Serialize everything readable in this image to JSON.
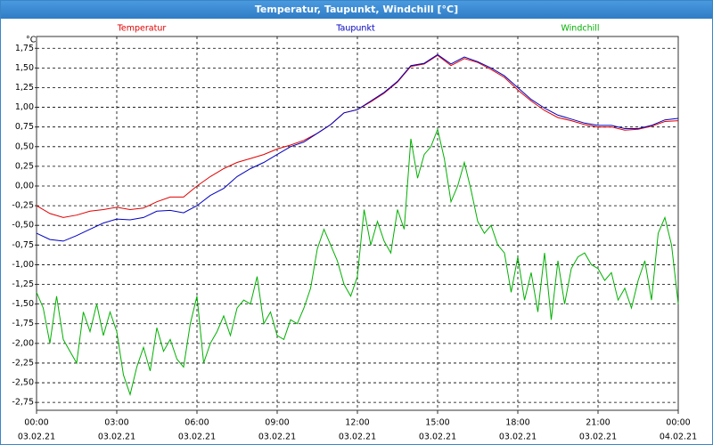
{
  "chart_data": {
    "type": "line",
    "title": "Temperatur, Taupunkt, Windchill [°C]",
    "y_unit": "°C",
    "xlim": [
      0,
      24
    ],
    "xticks": [
      {
        "value": 0,
        "label": "00:00"
      },
      {
        "value": 3,
        "label": "03:00"
      },
      {
        "value": 6,
        "label": "06:00"
      },
      {
        "value": 9,
        "label": "09:00"
      },
      {
        "value": 12,
        "label": "12:00"
      },
      {
        "value": 15,
        "label": "15:00"
      },
      {
        "value": 18,
        "label": "18:00"
      },
      {
        "value": 21,
        "label": "21:00"
      },
      {
        "value": 24,
        "label": "00:00"
      }
    ],
    "xtick_dates": [
      "03.02.21",
      "03.02.21",
      "03.02.21",
      "03.02.21",
      "03.02.21",
      "03.02.21",
      "03.02.21",
      "03.02.21",
      "04.02.21"
    ],
    "ylim": [
      -2.85,
      1.9
    ],
    "yticks": [
      {
        "value": 1.75,
        "label": "1,75"
      },
      {
        "value": 1.5,
        "label": "1,50"
      },
      {
        "value": 1.25,
        "label": "1,25"
      },
      {
        "value": 1,
        "label": "1,00"
      },
      {
        "value": 0.75,
        "label": "0,75"
      },
      {
        "value": 0.5,
        "label": "0,50"
      },
      {
        "value": 0.25,
        "label": "0,25"
      },
      {
        "value": 0,
        "label": "0,00"
      },
      {
        "value": -0.25,
        "label": "-0,25"
      },
      {
        "value": -0.5,
        "label": "-0,50"
      },
      {
        "value": -0.75,
        "label": "-0,75"
      },
      {
        "value": -1,
        "label": "-1,00"
      },
      {
        "value": -1.25,
        "label": "-1,25"
      },
      {
        "value": -1.5,
        "label": "-1,50"
      },
      {
        "value": -1.75,
        "label": "-1,75"
      },
      {
        "value": -2,
        "label": "-2,00"
      },
      {
        "value": -2.25,
        "label": "-2,25"
      },
      {
        "value": -2.5,
        "label": "-2,50"
      },
      {
        "value": -2.75,
        "label": "-2,75"
      }
    ],
    "grid": true,
    "series": [
      {
        "name": "Temperatur",
        "color": "#e00000",
        "x": [
          0,
          0.5,
          1,
          1.5,
          2,
          2.5,
          3,
          3.5,
          4,
          4.5,
          5,
          5.5,
          6,
          6.5,
          7,
          7.5,
          8,
          8.5,
          9,
          9.5,
          10,
          10.5,
          11,
          11.5,
          12,
          12.5,
          13,
          13.5,
          14,
          14.5,
          15,
          15.5,
          16,
          16.5,
          17,
          17.5,
          18,
          18.5,
          19,
          19.5,
          20,
          20.5,
          21,
          21.5,
          22,
          22.5,
          23,
          23.5,
          24
        ],
        "values": [
          -0.25,
          -0.35,
          -0.4,
          -0.37,
          -0.32,
          -0.3,
          -0.27,
          -0.3,
          -0.28,
          -0.2,
          -0.14,
          -0.14,
          0,
          0.12,
          0.22,
          0.3,
          0.35,
          0.4,
          0.47,
          0.52,
          0.58,
          0.67,
          0.78,
          0.93,
          0.97,
          1.07,
          1.18,
          1.32,
          1.52,
          1.55,
          1.66,
          1.53,
          1.62,
          1.57,
          1.48,
          1.38,
          1.22,
          1.08,
          0.96,
          0.87,
          0.83,
          0.78,
          0.75,
          0.75,
          0.71,
          0.72,
          0.76,
          0.82,
          0.83
        ]
      },
      {
        "name": "Taupunkt",
        "color": "#0000c0",
        "x": [
          0,
          0.5,
          1,
          1.5,
          2,
          2.5,
          3,
          3.5,
          4,
          4.5,
          5,
          5.5,
          6,
          6.5,
          7,
          7.5,
          8,
          8.5,
          9,
          9.5,
          10,
          10.5,
          11,
          11.5,
          12,
          12.5,
          13,
          13.5,
          14,
          14.5,
          15,
          15.5,
          16,
          16.5,
          17,
          17.5,
          18,
          18.5,
          19,
          19.5,
          20,
          20.5,
          21,
          21.5,
          22,
          22.5,
          23,
          23.5,
          24
        ],
        "values": [
          -0.6,
          -0.68,
          -0.7,
          -0.63,
          -0.55,
          -0.47,
          -0.42,
          -0.43,
          -0.4,
          -0.32,
          -0.31,
          -0.34,
          -0.25,
          -0.12,
          -0.03,
          0.12,
          0.22,
          0.3,
          0.4,
          0.5,
          0.56,
          0.67,
          0.78,
          0.93,
          0.97,
          1.08,
          1.19,
          1.33,
          1.53,
          1.56,
          1.67,
          1.55,
          1.64,
          1.58,
          1.5,
          1.4,
          1.25,
          1.1,
          0.99,
          0.9,
          0.85,
          0.8,
          0.77,
          0.77,
          0.73,
          0.73,
          0.77,
          0.84,
          0.86
        ]
      },
      {
        "name": "Windchill",
        "color": "#00b000",
        "x": [
          0,
          0.25,
          0.5,
          0.75,
          1,
          1.25,
          1.5,
          1.75,
          2,
          2.25,
          2.5,
          2.75,
          3,
          3.25,
          3.5,
          3.75,
          4,
          4.25,
          4.5,
          4.75,
          5,
          5.25,
          5.5,
          5.75,
          6,
          6.25,
          6.5,
          6.75,
          7,
          7.25,
          7.5,
          7.75,
          8,
          8.25,
          8.5,
          8.75,
          9,
          9.25,
          9.5,
          9.75,
          10,
          10.25,
          10.5,
          10.75,
          11,
          11.25,
          11.5,
          11.75,
          12,
          12.25,
          12.5,
          12.75,
          13,
          13.25,
          13.5,
          13.75,
          14,
          14.25,
          14.5,
          14.75,
          15,
          15.25,
          15.5,
          15.75,
          16,
          16.25,
          16.5,
          16.75,
          17,
          17.25,
          17.5,
          17.75,
          18,
          18.25,
          18.5,
          18.75,
          19,
          19.25,
          19.5,
          19.75,
          20,
          20.25,
          20.5,
          20.75,
          21,
          21.25,
          21.5,
          21.75,
          22,
          22.25,
          22.5,
          22.75,
          23,
          23.25,
          23.5,
          23.75,
          24
        ],
        "values": [
          -1.35,
          -1.55,
          -2,
          -1.4,
          -1.95,
          -2.1,
          -2.25,
          -1.6,
          -1.85,
          -1.5,
          -1.9,
          -1.6,
          -1.85,
          -2.4,
          -2.65,
          -2.3,
          -2.05,
          -2.35,
          -1.8,
          -2.1,
          -1.95,
          -2.2,
          -2.3,
          -1.75,
          -1.4,
          -2.25,
          -2,
          -1.85,
          -1.65,
          -1.9,
          -1.55,
          -1.45,
          -1.5,
          -1.15,
          -1.75,
          -1.6,
          -1.9,
          -1.95,
          -1.7,
          -1.75,
          -1.55,
          -1.3,
          -0.8,
          -0.55,
          -0.75,
          -0.95,
          -1.25,
          -1.4,
          -1.15,
          -0.3,
          -0.75,
          -0.45,
          -0.7,
          -0.85,
          -0.3,
          -0.55,
          0.6,
          0.1,
          0.4,
          0.5,
          0.72,
          0.35,
          -0.2,
          0,
          0.3,
          -0.05,
          -0.45,
          -0.6,
          -0.5,
          -0.75,
          -0.85,
          -1.35,
          -0.9,
          -1.45,
          -1.1,
          -1.6,
          -0.85,
          -1.7,
          -0.95,
          -1.5,
          -1.05,
          -0.9,
          -0.85,
          -1,
          -1.05,
          -1.2,
          -1.1,
          -1.45,
          -1.3,
          -1.55,
          -1.2,
          -0.95,
          -1.45,
          -0.6,
          -0.4,
          -0.75,
          -1.5
        ]
      }
    ]
  }
}
